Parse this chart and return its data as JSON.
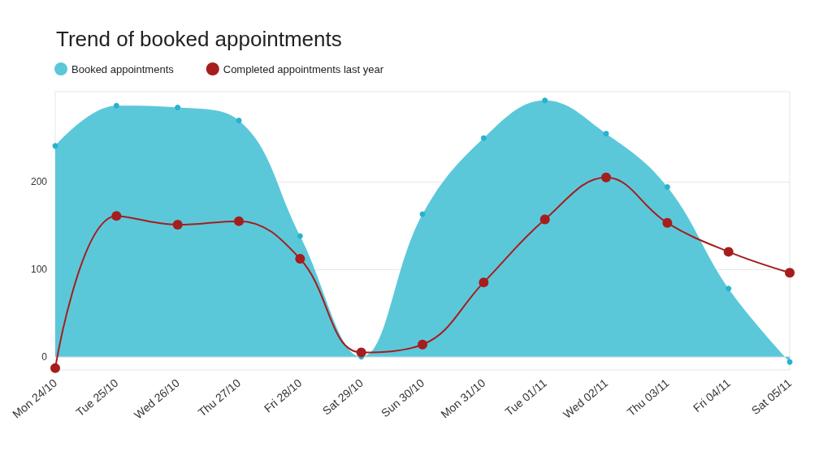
{
  "chart_data": {
    "type": "line",
    "title": "Trend of booked appointments",
    "categories": [
      "Mon 24/10",
      "Tue 25/10",
      "Wed 26/10",
      "Thu 27/10",
      "Fri 28/10",
      "Sat 29/10",
      "Sun 30/10",
      "Mon 31/10",
      "Tue 01/11",
      "Wed 02/11",
      "Thu 03/11",
      "Fri 04/11",
      "Sat 05/11"
    ],
    "series": [
      {
        "name": "Booked appointments",
        "type": "area",
        "color": "#5bc8da",
        "values": [
          241,
          287,
          285,
          270,
          138,
          0,
          163,
          250,
          293,
          255,
          194,
          78,
          -6
        ]
      },
      {
        "name": "Completed appointments last year",
        "color": "#a51d1d",
        "values": [
          -13,
          161,
          151,
          155,
          112,
          5,
          14,
          85,
          157,
          205,
          153,
          120,
          96
        ]
      }
    ],
    "ylim": [
      -15,
      303
    ],
    "yticks": [
      0,
      100,
      200
    ],
    "grid": "y",
    "legend": "top left",
    "marker": "circle",
    "line_style": "solid"
  }
}
